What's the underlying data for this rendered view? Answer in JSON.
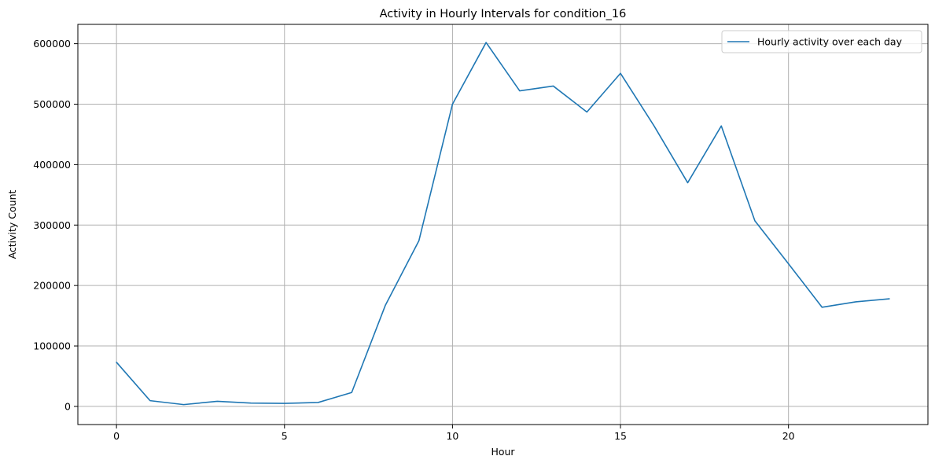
{
  "chart_data": {
    "type": "line",
    "title": "Activity in Hourly Intervals for condition_16",
    "xlabel": "Hour",
    "ylabel": "Activity Count",
    "xlim": [
      -1.15,
      24.15
    ],
    "ylim": [
      -30000,
      632000
    ],
    "xticks": [
      0,
      5,
      10,
      15,
      20
    ],
    "xtick_labels": [
      "0",
      "5",
      "10",
      "15",
      "20"
    ],
    "yticks": [
      0,
      100000,
      200000,
      300000,
      400000,
      500000,
      600000
    ],
    "ytick_labels": [
      "0",
      "100000",
      "200000",
      "300000",
      "400000",
      "500000",
      "600000"
    ],
    "grid": true,
    "legend_position": "upper right",
    "series": [
      {
        "name": "Hourly activity over each day",
        "color": "#1f77b4",
        "x": [
          0,
          1,
          2,
          3,
          4,
          5,
          6,
          7,
          8,
          9,
          10,
          11,
          12,
          13,
          14,
          15,
          16,
          17,
          18,
          19,
          20,
          21,
          22,
          23
        ],
        "y": [
          73000,
          9500,
          3000,
          8500,
          5500,
          5000,
          6500,
          23000,
          167000,
          274000,
          500000,
          602000,
          522000,
          530000,
          487000,
          551000,
          464000,
          370000,
          464000,
          307000,
          236000,
          164000,
          173000,
          178000
        ]
      }
    ]
  }
}
